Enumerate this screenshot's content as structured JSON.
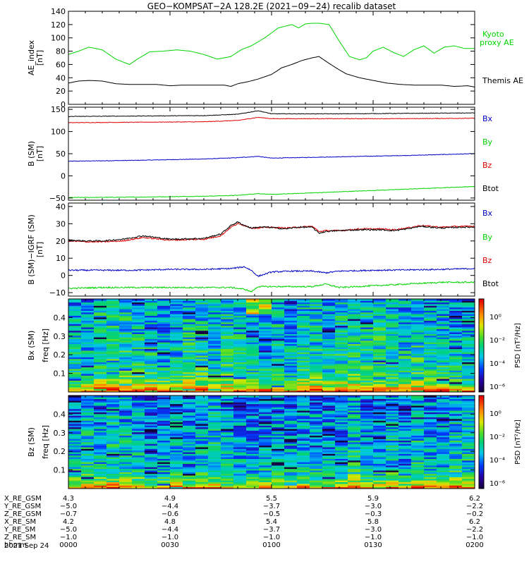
{
  "title": "GEO−KOMPSAT−2A 128.2E (2021−09−24) recalib dataset",
  "colors": {
    "black": "#000000",
    "red": "#e00000",
    "blue": "#0000c8",
    "green": "#00d400",
    "bx_label": "#0000c8",
    "by_label": "#00d400",
    "bz_label": "#e00000",
    "btot_label": "#000000"
  },
  "ae_panel": {
    "ylabel_line1": "AE_index",
    "ylabel_line2": "[nT]",
    "kyoto_label_line1": "Kyoto",
    "kyoto_label_line2": "proxy AE",
    "themis_label": "Themis AE"
  },
  "bsm_panel": {
    "ylabel_line1": "B (SM)",
    "ylabel_line2": "[nT]",
    "legend": [
      "Bx",
      "By",
      "Bz",
      "Btot"
    ]
  },
  "bdiff_panel": {
    "ylabel_line1": "B (SM)−IGRF (SM)",
    "ylabel_line2": "[nT]",
    "legend": [
      "Bx",
      "By",
      "Bz",
      "Btot"
    ]
  },
  "spec_bx": {
    "ylabel_line1": "Bx (SM)",
    "ylabel_line2": "freq  [Hz]",
    "cbar_label": "PSD  [nT²/Hz]",
    "cbar_ticks": [
      "10⁰",
      "10⁻²",
      "10⁻⁴",
      "10⁻⁶"
    ]
  },
  "spec_bz": {
    "ylabel_line1": "Bz (SM)",
    "ylabel_line2": "freq  [Hz]",
    "cbar_label": "PSD  [nT²/Hz]",
    "cbar_ticks": [
      "10⁰",
      "10⁻²",
      "10⁻⁴",
      "10⁻⁶"
    ]
  },
  "orbit_table": {
    "rows": [
      {
        "label": "X_RE_GSM",
        "values": [
          "4.3",
          "4.9",
          "5.5",
          "5.9",
          "6.2"
        ]
      },
      {
        "label": "Y_RE_GSM",
        "values": [
          "−5.0",
          "−4.4",
          "−3.7",
          "−3.0",
          "−2.2"
        ]
      },
      {
        "label": "Z_RE_GSM",
        "values": [
          "−0.7",
          "−0.6",
          "−0.5",
          "−0.3",
          "−0.2"
        ]
      },
      {
        "label": "X_RE_SM",
        "values": [
          "4.2",
          "4.8",
          "5.4",
          "5.8",
          "6.2"
        ]
      },
      {
        "label": "Y_RE_SM",
        "values": [
          "−5.0",
          "−4.4",
          "−3.7",
          "−3.0",
          "−2.2"
        ]
      },
      {
        "label": "Z_RE_SM",
        "values": [
          "−1.0",
          "−1.0",
          "−1.0",
          "−1.0",
          "−1.0"
        ]
      },
      {
        "label": "hhmm",
        "values": [
          "0000",
          "0030",
          "0100",
          "0130",
          "0200"
        ]
      }
    ],
    "date": "2021 Sep 24"
  },
  "chart_data": [
    {
      "type": "line",
      "x_unit": "minutes since 2021-09-24 00:00 UT",
      "xlim": [
        0,
        120
      ],
      "ylim": [
        0,
        140
      ],
      "yticks": [
        0,
        20,
        40,
        60,
        80,
        100,
        120,
        140
      ],
      "series": [
        {
          "name": "Kyoto proxy AE",
          "color": "#00d400",
          "x": [
            0,
            3,
            6,
            10,
            14,
            18,
            21,
            24,
            28,
            32,
            36,
            40,
            44,
            48,
            51,
            54,
            58,
            62,
            66,
            68,
            70,
            72,
            74,
            77,
            80,
            83,
            86,
            88,
            90,
            93,
            96,
            99,
            102,
            105,
            108,
            111,
            114,
            117,
            120
          ],
          "y": [
            75,
            80,
            86,
            82,
            68,
            60,
            70,
            79,
            80,
            82,
            80,
            75,
            68,
            72,
            82,
            88,
            100,
            115,
            120,
            115,
            121,
            122,
            122,
            120,
            95,
            72,
            67,
            70,
            80,
            86,
            78,
            72,
            82,
            88,
            77,
            86,
            88,
            84,
            84
          ]
        },
        {
          "name": "Themis AE",
          "color": "#000000",
          "x": [
            0,
            3,
            6,
            10,
            14,
            18,
            22,
            26,
            30,
            34,
            38,
            42,
            46,
            48,
            50,
            53,
            56,
            60,
            63,
            66,
            69,
            72,
            74,
            76,
            79,
            82,
            86,
            90,
            94,
            98,
            102,
            106,
            110,
            114,
            118,
            120
          ],
          "y": [
            32,
            35,
            36,
            35,
            31,
            30,
            30,
            30,
            28,
            29,
            29,
            29,
            29,
            27,
            31,
            34,
            38,
            45,
            55,
            60,
            66,
            70,
            72,
            65,
            55,
            46,
            40,
            36,
            32,
            30,
            29,
            29,
            29,
            27,
            28,
            26
          ]
        }
      ]
    },
    {
      "type": "line",
      "x_unit": "minutes since 2021-09-24 00:00 UT",
      "xlim": [
        0,
        120
      ],
      "ylim": [
        -55,
        155
      ],
      "yticks": [
        -50,
        0,
        50,
        100,
        150
      ],
      "series": [
        {
          "name": "Bx",
          "color": "#0000c8",
          "x": [
            0,
            20,
            40,
            50,
            56,
            60,
            80,
            100,
            120
          ],
          "y": [
            33,
            35,
            38,
            41,
            44,
            40,
            43,
            46,
            50
          ]
        },
        {
          "name": "By",
          "color": "#00d400",
          "x": [
            0,
            20,
            40,
            50,
            56,
            60,
            80,
            100,
            120
          ],
          "y": [
            -49,
            -48,
            -46,
            -44,
            -40,
            -42,
            -36,
            -30,
            -24
          ]
        },
        {
          "name": "Bz",
          "color": "#e00000",
          "x": [
            0,
            20,
            40,
            50,
            56,
            60,
            80,
            100,
            120
          ],
          "y": [
            120,
            121,
            122,
            125,
            132,
            129,
            129,
            129,
            130
          ]
        },
        {
          "name": "Btot",
          "color": "#000000",
          "x": [
            0,
            20,
            40,
            50,
            56,
            60,
            80,
            100,
            120
          ],
          "y": [
            134,
            135,
            136,
            139,
            147,
            140,
            140,
            141,
            142
          ]
        }
      ]
    },
    {
      "type": "line",
      "x_unit": "minutes since 2021-09-24 00:00 UT",
      "xlim": [
        0,
        120
      ],
      "ylim": [
        -12,
        42
      ],
      "yticks": [
        -10,
        0,
        10,
        20,
        30,
        40
      ],
      "series": [
        {
          "name": "Bx",
          "color": "#0000c8",
          "x": [
            0,
            10,
            20,
            30,
            40,
            48,
            52,
            54,
            56,
            60,
            66,
            72,
            76,
            80,
            90,
            100,
            110,
            120
          ],
          "y": [
            3,
            3,
            3,
            3.5,
            3.5,
            4,
            5,
            3,
            -0.5,
            2,
            2.5,
            2.5,
            1.5,
            2.5,
            3,
            3.2,
            3.5,
            4
          ]
        },
        {
          "name": "By",
          "color": "#00d400",
          "x": [
            0,
            10,
            20,
            30,
            40,
            48,
            52,
            54,
            56,
            60,
            66,
            72,
            76,
            80,
            90,
            100,
            110,
            120
          ],
          "y": [
            -7.5,
            -7,
            -7,
            -7,
            -7,
            -7,
            -8,
            -9.5,
            -6.5,
            -6.5,
            -6.5,
            -6.5,
            -5,
            -7,
            -6,
            -5,
            -4,
            -4
          ]
        },
        {
          "name": "Bz",
          "color": "#e00000",
          "x": [
            0,
            5,
            10,
            16,
            22,
            30,
            40,
            45,
            48,
            50,
            52,
            54,
            56,
            59,
            64,
            68,
            72,
            74,
            76,
            80,
            86,
            92,
            96,
            100,
            104,
            110,
            116,
            120
          ],
          "y": [
            20,
            19.5,
            19.5,
            20,
            22,
            20.5,
            21,
            23,
            28,
            30,
            29,
            27.5,
            27.5,
            28,
            27.5,
            28,
            28.5,
            25.5,
            26,
            26,
            27,
            27,
            26.5,
            27.5,
            29,
            28,
            28.5,
            28.5
          ]
        },
        {
          "name": "Btot",
          "color": "#000000",
          "x": [
            0,
            5,
            10,
            16,
            22,
            30,
            40,
            45,
            48,
            50,
            52,
            54,
            56,
            59,
            64,
            68,
            72,
            74,
            76,
            80,
            86,
            92,
            96,
            100,
            104,
            110,
            116,
            120
          ],
          "y": [
            20.5,
            20,
            20,
            21,
            23,
            21,
            21.5,
            24,
            29,
            31,
            29,
            27.5,
            28,
            28,
            27,
            28,
            28,
            24.5,
            25.5,
            26,
            26.5,
            26.5,
            26,
            27,
            28.5,
            27.5,
            28,
            28
          ]
        }
      ]
    },
    {
      "type": "heatmap",
      "x_unit": "minutes since 2021-09-24 00:00 UT",
      "xlim": [
        0,
        120
      ],
      "ylim": [
        0,
        0.5
      ],
      "yticks": [
        0.1,
        0.2,
        0.3,
        0.4
      ],
      "colorbar_range_log10": [
        -7,
        1
      ]
    },
    {
      "type": "heatmap",
      "x_unit": "minutes since 2021-09-24 00:00 UT",
      "xlim": [
        0,
        120
      ],
      "ylim": [
        0,
        0.5
      ],
      "yticks": [
        0.1,
        0.2,
        0.3,
        0.4
      ],
      "colorbar_range_log10": [
        -7,
        1
      ]
    }
  ]
}
